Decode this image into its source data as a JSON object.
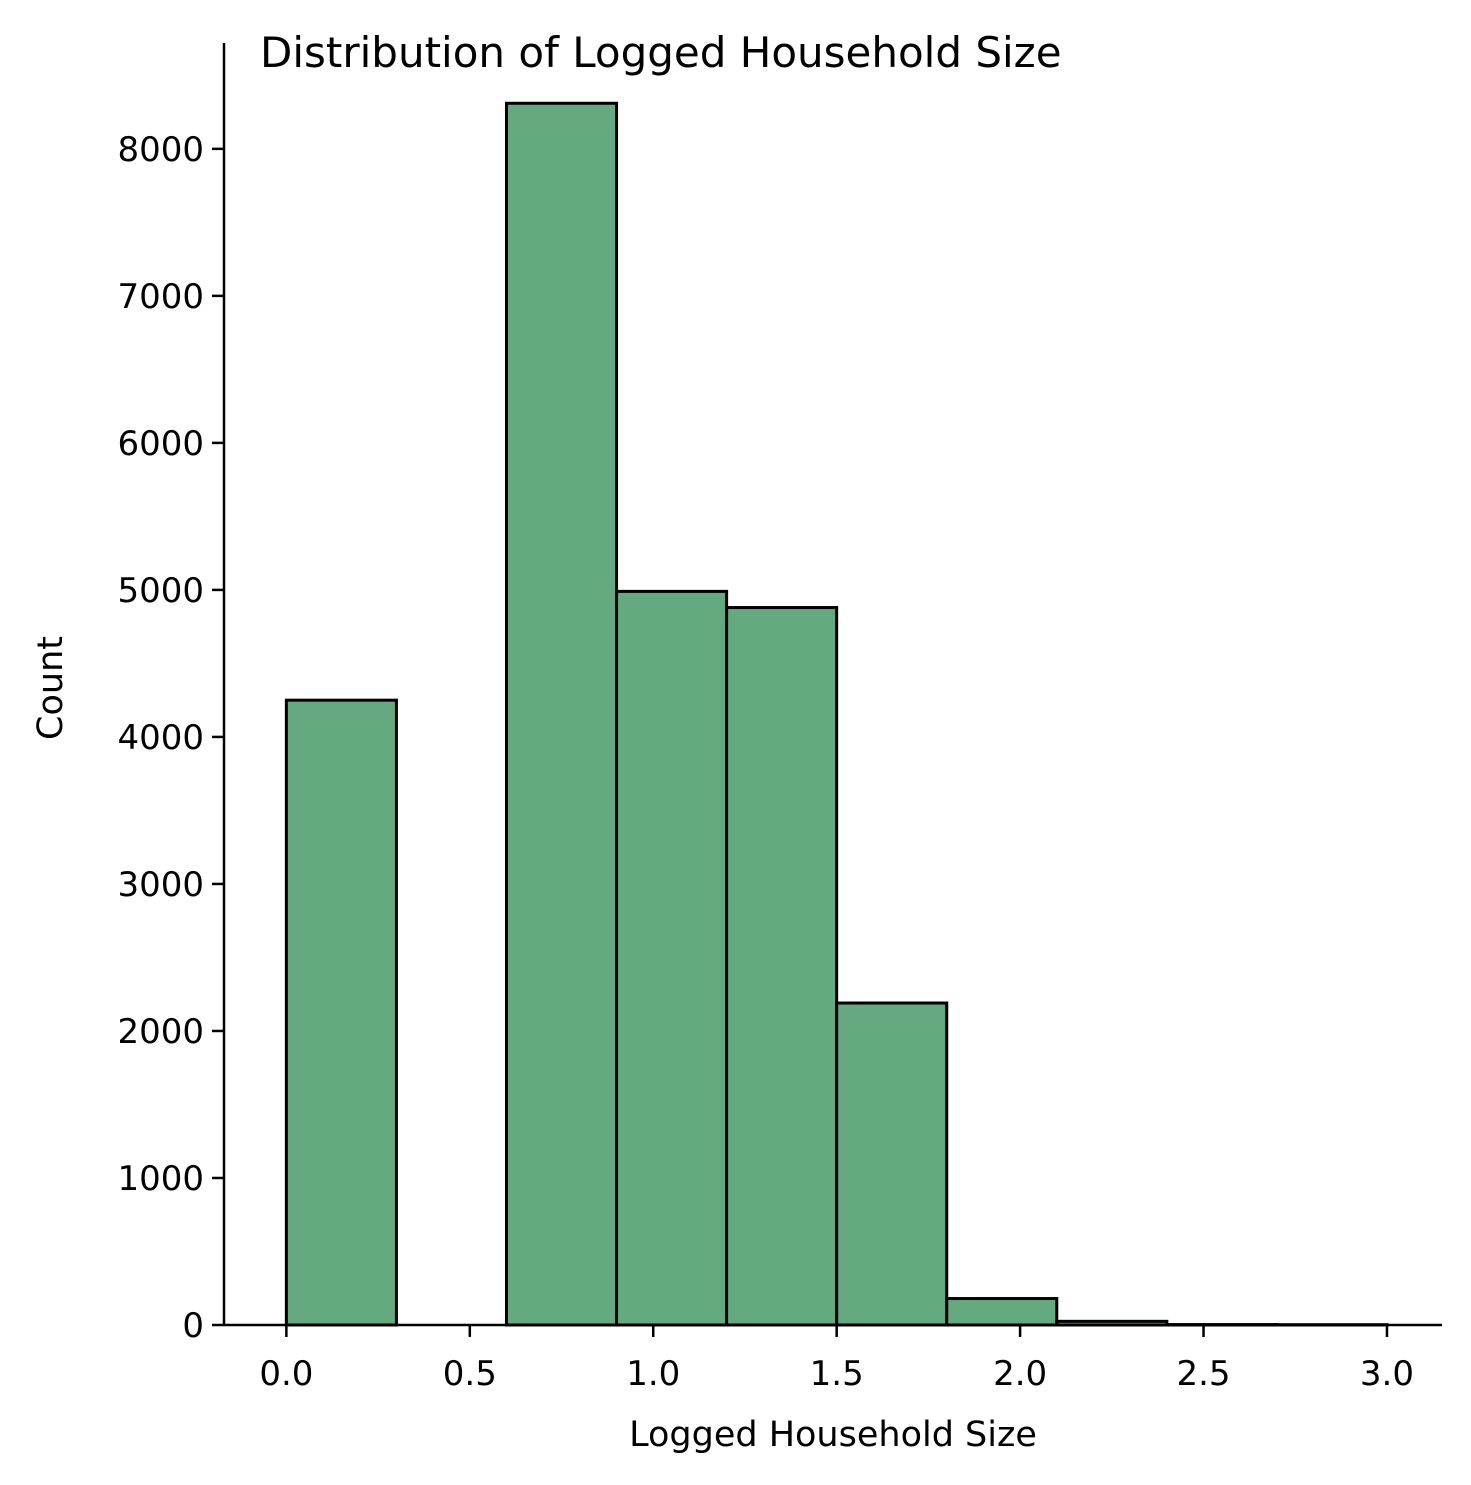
{
  "chart_data": {
    "type": "bar",
    "title": "Distribution of Logged Household Size",
    "xlabel": "Logged Household Size",
    "ylabel": "Count",
    "bins": [
      {
        "x0": 0.0,
        "x1": 0.3,
        "count": 4250
      },
      {
        "x0": 0.3,
        "x1": 0.6,
        "count": 0
      },
      {
        "x0": 0.6,
        "x1": 0.9,
        "count": 8310
      },
      {
        "x0": 0.9,
        "x1": 1.2,
        "count": 4990
      },
      {
        "x0": 1.2,
        "x1": 1.5,
        "count": 4880
      },
      {
        "x0": 1.5,
        "x1": 1.8,
        "count": 2190
      },
      {
        "x0": 1.8,
        "x1": 2.1,
        "count": 180
      },
      {
        "x0": 2.1,
        "x1": 2.4,
        "count": 25
      },
      {
        "x0": 2.4,
        "x1": 2.7,
        "count": 3
      },
      {
        "x0": 2.7,
        "x1": 3.0,
        "count": 2
      }
    ],
    "xticks": [
      "0.0",
      "0.5",
      "1.0",
      "1.5",
      "2.0",
      "2.5",
      "3.0"
    ],
    "xtick_values": [
      0.0,
      0.5,
      1.0,
      1.5,
      2.0,
      2.5,
      3.0
    ],
    "yticks": [
      "0",
      "1000",
      "2000",
      "3000",
      "4000",
      "5000",
      "6000",
      "7000",
      "8000"
    ],
    "ytick_values": [
      0,
      1000,
      2000,
      3000,
      4000,
      5000,
      6000,
      7000,
      8000
    ],
    "xlim": [
      -0.17,
      3.15
    ],
    "ylim": [
      0,
      8720
    ],
    "grid": false,
    "bar_color": "#65a981",
    "edge_color": "#000000"
  }
}
